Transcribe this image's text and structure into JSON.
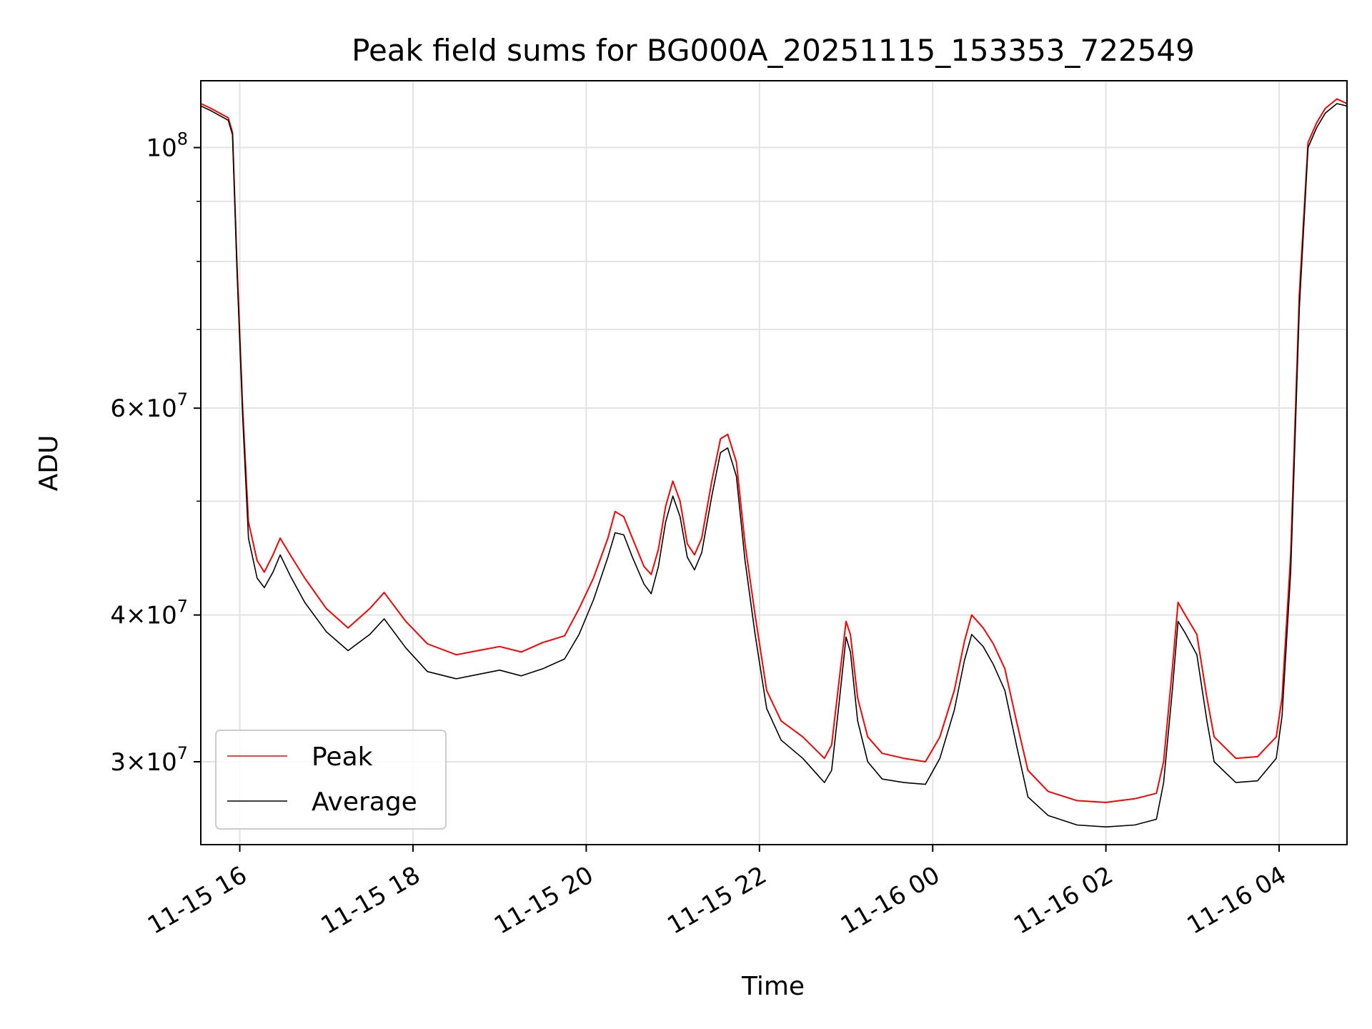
{
  "chart_data": {
    "type": "line",
    "title": "Peak field sums for BG000A_20251115_153353_722549",
    "xlabel": "Time",
    "ylabel": "ADU",
    "y_scale": "log",
    "xlim": [
      "2025-11-15T15:33",
      "2025-11-16T04:47"
    ],
    "ylim": [
      25500000,
      114000000
    ],
    "grid": true,
    "legend": {
      "position": "lower-left",
      "entries": [
        "Peak",
        "Average"
      ]
    },
    "x_ticks": [
      {
        "t": "2025-11-15T16:00",
        "label": "11-15 16"
      },
      {
        "t": "2025-11-15T18:00",
        "label": "11-15 18"
      },
      {
        "t": "2025-11-15T20:00",
        "label": "11-15 20"
      },
      {
        "t": "2025-11-15T22:00",
        "label": "11-15 22"
      },
      {
        "t": "2025-11-16T00:00",
        "label": "11-16 00"
      },
      {
        "t": "2025-11-16T02:00",
        "label": "11-16 02"
      },
      {
        "t": "2025-11-16T04:00",
        "label": "11-16 04"
      }
    ],
    "y_major_ticks": [
      {
        "value": 30000000,
        "mant": "3",
        "exp": "7"
      },
      {
        "value": 40000000,
        "mant": "4",
        "exp": "7"
      },
      {
        "value": 60000000,
        "mant": "6",
        "exp": "7"
      },
      {
        "value": 100000000,
        "mant": "",
        "exp": "8"
      }
    ],
    "y_minor_ticks": [
      50000000,
      70000000,
      80000000,
      90000000
    ],
    "series": [
      {
        "name": "Peak",
        "color": "#ff0000",
        "points": [
          [
            "2025-11-15T15:33",
            109000000
          ],
          [
            "2025-11-15T15:40",
            108000000
          ],
          [
            "2025-11-15T15:52",
            106000000
          ],
          [
            "2025-11-15T15:55",
            103000000
          ],
          [
            "2025-11-15T15:58",
            80000000
          ],
          [
            "2025-11-15T16:02",
            60000000
          ],
          [
            "2025-11-15T16:06",
            48000000
          ],
          [
            "2025-11-15T16:12",
            44500000
          ],
          [
            "2025-11-15T16:17",
            43500000
          ],
          [
            "2025-11-15T16:23",
            45000000
          ],
          [
            "2025-11-15T16:28",
            46500000
          ],
          [
            "2025-11-15T16:35",
            45000000
          ],
          [
            "2025-11-15T16:45",
            43000000
          ],
          [
            "2025-11-15T17:00",
            40500000
          ],
          [
            "2025-11-15T17:15",
            39000000
          ],
          [
            "2025-11-15T17:30",
            40500000
          ],
          [
            "2025-11-15T17:40",
            41800000
          ],
          [
            "2025-11-15T17:55",
            39500000
          ],
          [
            "2025-11-15T18:10",
            37800000
          ],
          [
            "2025-11-15T18:30",
            37000000
          ],
          [
            "2025-11-15T18:45",
            37300000
          ],
          [
            "2025-11-15T19:00",
            37600000
          ],
          [
            "2025-11-15T19:15",
            37200000
          ],
          [
            "2025-11-15T19:30",
            37900000
          ],
          [
            "2025-11-15T19:45",
            38400000
          ],
          [
            "2025-11-15T19:55",
            40500000
          ],
          [
            "2025-11-15T20:05",
            43000000
          ],
          [
            "2025-11-15T20:15",
            46500000
          ],
          [
            "2025-11-15T20:20",
            49000000
          ],
          [
            "2025-11-15T20:26",
            48500000
          ],
          [
            "2025-11-15T20:32",
            46500000
          ],
          [
            "2025-11-15T20:40",
            44000000
          ],
          [
            "2025-11-15T20:45",
            43300000
          ],
          [
            "2025-11-15T20:50",
            45500000
          ],
          [
            "2025-11-15T20:55",
            49500000
          ],
          [
            "2025-11-15T21:00",
            52000000
          ],
          [
            "2025-11-15T21:05",
            50000000
          ],
          [
            "2025-11-15T21:10",
            46000000
          ],
          [
            "2025-11-15T21:15",
            45000000
          ],
          [
            "2025-11-15T21:20",
            46500000
          ],
          [
            "2025-11-15T21:27",
            52000000
          ],
          [
            "2025-11-15T21:33",
            56500000
          ],
          [
            "2025-11-15T21:38",
            57000000
          ],
          [
            "2025-11-15T21:44",
            54000000
          ],
          [
            "2025-11-15T21:50",
            46000000
          ],
          [
            "2025-11-15T21:57",
            40000000
          ],
          [
            "2025-11-15T22:05",
            34500000
          ],
          [
            "2025-11-15T22:15",
            32500000
          ],
          [
            "2025-11-15T22:30",
            31500000
          ],
          [
            "2025-11-15T22:45",
            30200000
          ],
          [
            "2025-11-15T22:50",
            31000000
          ],
          [
            "2025-11-15T22:55",
            35000000
          ],
          [
            "2025-11-15T23:00",
            39500000
          ],
          [
            "2025-11-15T23:03",
            38500000
          ],
          [
            "2025-11-15T23:08",
            34000000
          ],
          [
            "2025-11-15T23:15",
            31500000
          ],
          [
            "2025-11-15T23:25",
            30500000
          ],
          [
            "2025-11-15T23:40",
            30200000
          ],
          [
            "2025-11-15T23:55",
            30000000
          ],
          [
            "2025-11-16T00:05",
            31500000
          ],
          [
            "2025-11-16T00:15",
            34500000
          ],
          [
            "2025-11-16T00:22",
            38000000
          ],
          [
            "2025-11-16T00:27",
            40000000
          ],
          [
            "2025-11-16T00:35",
            39000000
          ],
          [
            "2025-11-16T00:42",
            37800000
          ],
          [
            "2025-11-16T00:50",
            36000000
          ],
          [
            "2025-11-16T00:58",
            32500000
          ],
          [
            "2025-11-16T01:06",
            29500000
          ],
          [
            "2025-11-16T01:20",
            28300000
          ],
          [
            "2025-11-16T01:40",
            27800000
          ],
          [
            "2025-11-16T02:00",
            27700000
          ],
          [
            "2025-11-16T02:20",
            27900000
          ],
          [
            "2025-11-16T02:35",
            28200000
          ],
          [
            "2025-11-16T02:40",
            30000000
          ],
          [
            "2025-11-16T02:46",
            36000000
          ],
          [
            "2025-11-16T02:50",
            41000000
          ],
          [
            "2025-11-16T02:55",
            40000000
          ],
          [
            "2025-11-16T03:03",
            38500000
          ],
          [
            "2025-11-16T03:10",
            34000000
          ],
          [
            "2025-11-16T03:15",
            31500000
          ],
          [
            "2025-11-16T03:30",
            30200000
          ],
          [
            "2025-11-16T03:45",
            30300000
          ],
          [
            "2025-11-16T03:58",
            31500000
          ],
          [
            "2025-11-16T04:02",
            34000000
          ],
          [
            "2025-11-16T04:08",
            45000000
          ],
          [
            "2025-11-16T04:14",
            75000000
          ],
          [
            "2025-11-16T04:20",
            101000000
          ],
          [
            "2025-11-16T04:26",
            105000000
          ],
          [
            "2025-11-16T04:32",
            108000000
          ],
          [
            "2025-11-16T04:40",
            110000000
          ],
          [
            "2025-11-16T04:47",
            109000000
          ]
        ]
      },
      {
        "name": "Average",
        "color": "#000000",
        "points": [
          [
            "2025-11-15T15:33",
            108500000
          ],
          [
            "2025-11-15T15:40",
            107500000
          ],
          [
            "2025-11-15T15:52",
            105500000
          ],
          [
            "2025-11-15T15:55",
            102500000
          ],
          [
            "2025-11-15T15:58",
            79000000
          ],
          [
            "2025-11-15T16:02",
            59000000
          ],
          [
            "2025-11-15T16:06",
            46500000
          ],
          [
            "2025-11-15T16:12",
            43000000
          ],
          [
            "2025-11-15T16:17",
            42200000
          ],
          [
            "2025-11-15T16:23",
            43500000
          ],
          [
            "2025-11-15T16:28",
            45000000
          ],
          [
            "2025-11-15T16:35",
            43200000
          ],
          [
            "2025-11-15T16:45",
            41000000
          ],
          [
            "2025-11-15T17:00",
            38700000
          ],
          [
            "2025-11-15T17:15",
            37300000
          ],
          [
            "2025-11-15T17:30",
            38500000
          ],
          [
            "2025-11-15T17:40",
            39700000
          ],
          [
            "2025-11-15T17:55",
            37500000
          ],
          [
            "2025-11-15T18:10",
            35800000
          ],
          [
            "2025-11-15T18:30",
            35300000
          ],
          [
            "2025-11-15T18:45",
            35600000
          ],
          [
            "2025-11-15T19:00",
            35900000
          ],
          [
            "2025-11-15T19:15",
            35500000
          ],
          [
            "2025-11-15T19:30",
            36000000
          ],
          [
            "2025-11-15T19:45",
            36700000
          ],
          [
            "2025-11-15T19:55",
            38500000
          ],
          [
            "2025-11-15T20:05",
            41200000
          ],
          [
            "2025-11-15T20:15",
            44800000
          ],
          [
            "2025-11-15T20:20",
            47000000
          ],
          [
            "2025-11-15T20:26",
            46800000
          ],
          [
            "2025-11-15T20:32",
            44800000
          ],
          [
            "2025-11-15T20:40",
            42500000
          ],
          [
            "2025-11-15T20:45",
            41700000
          ],
          [
            "2025-11-15T20:50",
            44000000
          ],
          [
            "2025-11-15T20:55",
            48000000
          ],
          [
            "2025-11-15T21:00",
            50500000
          ],
          [
            "2025-11-15T21:05",
            48500000
          ],
          [
            "2025-11-15T21:10",
            44800000
          ],
          [
            "2025-11-15T21:15",
            43700000
          ],
          [
            "2025-11-15T21:20",
            45200000
          ],
          [
            "2025-11-15T21:27",
            50500000
          ],
          [
            "2025-11-15T21:33",
            55000000
          ],
          [
            "2025-11-15T21:38",
            55500000
          ],
          [
            "2025-11-15T21:44",
            52500000
          ],
          [
            "2025-11-15T21:50",
            44500000
          ],
          [
            "2025-11-15T21:57",
            38500000
          ],
          [
            "2025-11-15T22:05",
            33300000
          ],
          [
            "2025-11-15T22:15",
            31300000
          ],
          [
            "2025-11-15T22:30",
            30200000
          ],
          [
            "2025-11-15T22:45",
            28800000
          ],
          [
            "2025-11-15T22:50",
            29500000
          ],
          [
            "2025-11-15T22:55",
            33500000
          ],
          [
            "2025-11-15T23:00",
            38300000
          ],
          [
            "2025-11-15T23:03",
            37200000
          ],
          [
            "2025-11-15T23:08",
            32500000
          ],
          [
            "2025-11-15T23:15",
            30000000
          ],
          [
            "2025-11-15T23:25",
            29000000
          ],
          [
            "2025-11-15T23:40",
            28800000
          ],
          [
            "2025-11-15T23:55",
            28700000
          ],
          [
            "2025-11-16T00:05",
            30200000
          ],
          [
            "2025-11-16T00:15",
            33200000
          ],
          [
            "2025-11-16T00:22",
            36600000
          ],
          [
            "2025-11-16T00:27",
            38500000
          ],
          [
            "2025-11-16T00:35",
            37600000
          ],
          [
            "2025-11-16T00:42",
            36300000
          ],
          [
            "2025-11-16T00:50",
            34500000
          ],
          [
            "2025-11-16T00:58",
            31000000
          ],
          [
            "2025-11-16T01:06",
            28000000
          ],
          [
            "2025-11-16T01:20",
            27000000
          ],
          [
            "2025-11-16T01:40",
            26500000
          ],
          [
            "2025-11-16T02:00",
            26400000
          ],
          [
            "2025-11-16T02:20",
            26500000
          ],
          [
            "2025-11-16T02:35",
            26800000
          ],
          [
            "2025-11-16T02:40",
            28800000
          ],
          [
            "2025-11-16T02:46",
            34500000
          ],
          [
            "2025-11-16T02:50",
            39500000
          ],
          [
            "2025-11-16T02:55",
            38600000
          ],
          [
            "2025-11-16T03:03",
            37000000
          ],
          [
            "2025-11-16T03:10",
            32500000
          ],
          [
            "2025-11-16T03:15",
            30000000
          ],
          [
            "2025-11-16T03:30",
            28800000
          ],
          [
            "2025-11-16T03:45",
            28900000
          ],
          [
            "2025-11-16T03:58",
            30200000
          ],
          [
            "2025-11-16T04:02",
            32800000
          ],
          [
            "2025-11-16T04:08",
            43500000
          ],
          [
            "2025-11-16T04:14",
            73000000
          ],
          [
            "2025-11-16T04:20",
            100000000
          ],
          [
            "2025-11-16T04:26",
            104000000
          ],
          [
            "2025-11-16T04:32",
            107000000
          ],
          [
            "2025-11-16T04:40",
            109000000
          ],
          [
            "2025-11-16T04:47",
            108500000
          ]
        ]
      }
    ]
  }
}
